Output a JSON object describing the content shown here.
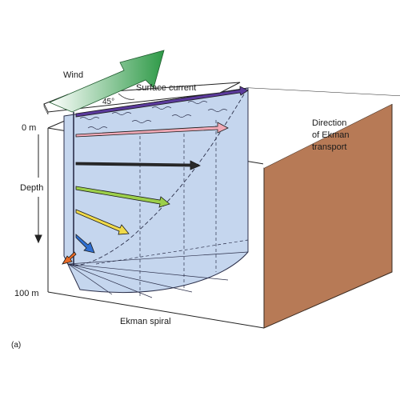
{
  "labels": {
    "wind": "Wind",
    "angle": "45°",
    "surface_current": "Surface current",
    "direction_line1": "Direction",
    "direction_line2": "of Ekman",
    "direction_line3": "transport",
    "depth_top": "0 m",
    "depth_axis": "Depth",
    "depth_bottom": "100 m",
    "spiral": "Ekman spiral",
    "panel": "(a)"
  },
  "colors": {
    "water": "#c5d6ee",
    "water_edge": "#2b2f4a",
    "land": "#b77a56",
    "land_edge": "#3a2a20",
    "wind_arrow_start": "#ffffff",
    "wind_arrow_end": "#2e9a47",
    "current_arrows": [
      "#5b3a9c",
      "#f0a9b6",
      "#2a2a2a",
      "#9ccf4a",
      "#f0da4a",
      "#2f6fd1",
      "#e86a26"
    ]
  }
}
